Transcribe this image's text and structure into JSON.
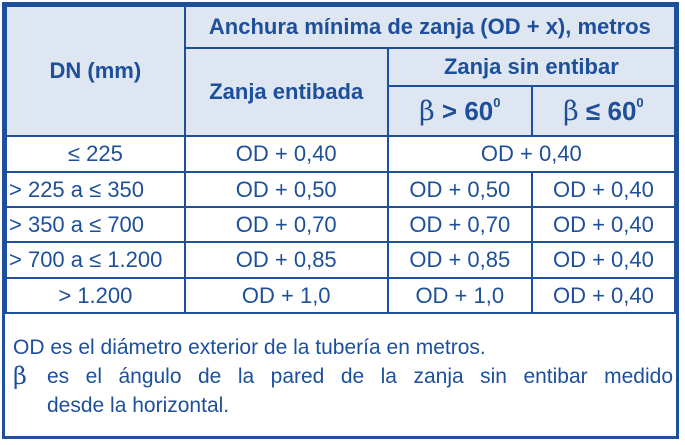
{
  "header": {
    "title": "Anchura mínima de zanja (OD + x), metros",
    "dn": "DN (mm)",
    "entibada": "Zanja entibada",
    "sin_entibar": "Zanja sin entibar",
    "beta_symbol": "β",
    "beta_gt": "> 60",
    "beta_le": "≤ 60",
    "degree": "0"
  },
  "rows": [
    {
      "dn": "≤ 225",
      "entibada": "OD + 0,40",
      "sin_entibar_merged": "OD + 0,40"
    },
    {
      "dn": "> 225 a ≤ 350",
      "entibada": "OD + 0,50",
      "gt": "OD + 0,50",
      "le": "OD + 0,40"
    },
    {
      "dn": "> 350 a ≤ 700",
      "entibada": "OD + 0,70",
      "gt": "OD + 0,70",
      "le": "OD + 0,40"
    },
    {
      "dn": "> 700 a ≤ 1.200",
      "entibada": "OD + 0,85",
      "gt": "OD + 0,85",
      "le": "OD + 0,40"
    },
    {
      "dn": "> 1.200",
      "entibada": "OD + 1,0",
      "gt": "OD + 1,0",
      "le": "OD + 0,40"
    }
  ],
  "notes": {
    "line1": "OD es el diámetro exterior de la tubería en metros.",
    "beta_symbol": "β",
    "line2": "es el ángulo de la pared de la zanja sin entibar medido",
    "line3": "desde la horizontal."
  },
  "colors": {
    "text": "#1d4f9a",
    "header_bg": "#dde6f1",
    "border": "#1d4f9a"
  }
}
